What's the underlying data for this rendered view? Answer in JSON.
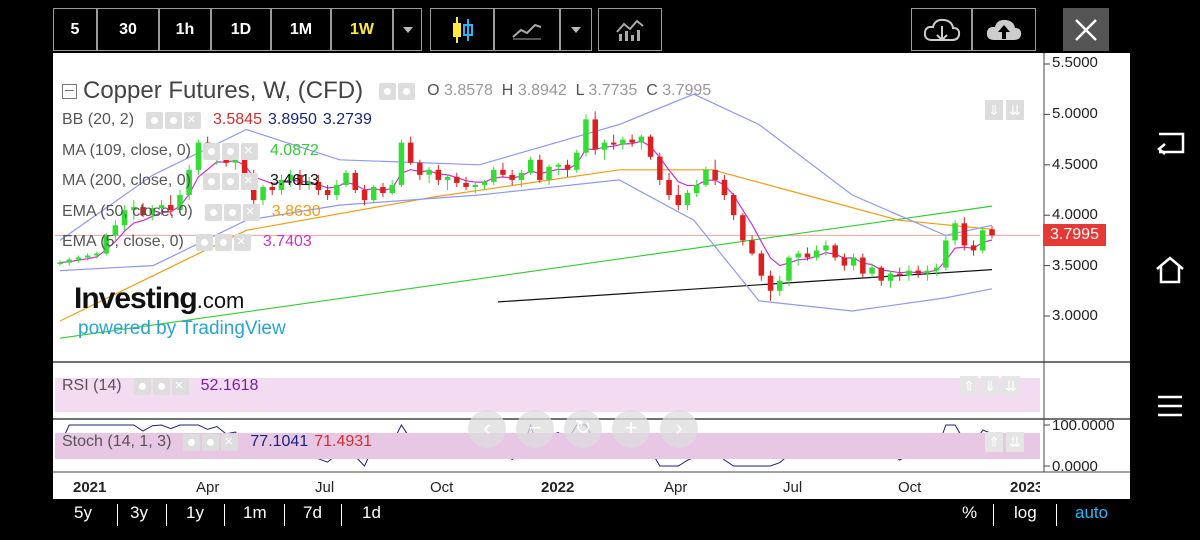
{
  "toolbar": {
    "intervals": [
      "5",
      "30",
      "1h",
      "1D",
      "1M",
      "1W"
    ],
    "active_interval": "1W",
    "colors": {
      "active": "#ffeb3b",
      "text": "#ffffff",
      "border": "#9a9a9a"
    },
    "icons": [
      "chevron-down-icon",
      "candlestick-icon",
      "line-chart-icon",
      "chevron-down-icon",
      "indicators-icon",
      "cloud-download-icon",
      "cloud-upload-icon",
      "close-icon"
    ]
  },
  "header": {
    "title": "Copper Futures, W, (CFD)",
    "ohlc": {
      "o_label": "O",
      "o": "3.8578",
      "h_label": "H",
      "h": "3.8942",
      "l_label": "L",
      "l": "3.7735",
      "c_label": "C",
      "c": "3.7995"
    }
  },
  "indicators": [
    {
      "name": "BB (20, 2)",
      "values": [
        "3.5845",
        "3.8950",
        "3.2739"
      ],
      "colors": [
        "#d32f2f",
        "#1a237e",
        "#1a237e"
      ]
    },
    {
      "name": "MA (109, close, 0)",
      "values": [
        "4.0872"
      ],
      "colors": [
        "#33cc33"
      ]
    },
    {
      "name": "MA (200, close, 0)",
      "values": [
        "3.4613"
      ],
      "colors": [
        "#111111"
      ]
    },
    {
      "name": "EMA (50, close, 0)",
      "values": [
        "3.8630"
      ],
      "colors": [
        "#f39c12"
      ]
    },
    {
      "name": "EMA (5, close, 0)",
      "values": [
        "3.7403"
      ],
      "colors": [
        "#cc33cc"
      ]
    }
  ],
  "watermark": {
    "brand": "Investing",
    "brand_suffix": ".com",
    "powered": "powered by TradingView"
  },
  "price_axis": {
    "labels": [
      "5.5000",
      "5.0000",
      "4.5000",
      "4.0000",
      "3.5000",
      "3.0000"
    ],
    "current_price": "3.7995",
    "current_color": "#e53935"
  },
  "rsi": {
    "name": "RSI (14)",
    "value": "52.1618"
  },
  "stoch": {
    "name": "Stoch (14, 1, 3)",
    "k": "77.1041",
    "d": "71.4931",
    "axis": [
      "100.0000",
      "0.0000"
    ]
  },
  "time_axis": {
    "labels": [
      "2021",
      "Apr",
      "Jul",
      "Oct",
      "2022",
      "Apr",
      "Jul",
      "Oct",
      "2023"
    ]
  },
  "bottom_bar": {
    "ranges": [
      "5y",
      "3y",
      "1y",
      "1m",
      "7d",
      "1d"
    ],
    "options": [
      "%",
      "log",
      "auto"
    ],
    "auto_color": "#29b6f6"
  },
  "nav_icons": [
    "back-icon",
    "home-icon",
    "menu-icon"
  ],
  "chart_data": {
    "type": "candlestick",
    "title": "Copper Futures, W, (CFD)",
    "ylim": [
      2.5,
      5.5
    ],
    "x_ticks": [
      "2021",
      "Apr",
      "Jul",
      "Oct",
      "2022",
      "Apr",
      "Jul",
      "Oct",
      "2023"
    ],
    "candles": [
      [
        3.52,
        3.55,
        3.5,
        3.53
      ],
      [
        3.53,
        3.58,
        3.5,
        3.56
      ],
      [
        3.56,
        3.6,
        3.53,
        3.58
      ],
      [
        3.58,
        3.62,
        3.55,
        3.6
      ],
      [
        3.6,
        3.64,
        3.57,
        3.62
      ],
      [
        3.62,
        3.82,
        3.6,
        3.8
      ],
      [
        3.8,
        3.95,
        3.75,
        3.9
      ],
      [
        3.9,
        4.1,
        3.85,
        4.05
      ],
      [
        4.05,
        4.15,
        3.95,
        4.08
      ],
      [
        4.08,
        4.12,
        3.98,
        4.0
      ],
      [
        4.0,
        4.1,
        3.95,
        4.07
      ],
      [
        4.07,
        4.15,
        4.0,
        4.1
      ],
      [
        4.1,
        4.2,
        4.0,
        4.05
      ],
      [
        4.05,
        4.25,
        4.02,
        4.2
      ],
      [
        4.2,
        4.5,
        4.15,
        4.45
      ],
      [
        4.45,
        4.75,
        4.4,
        4.72
      ],
      [
        4.72,
        4.78,
        4.55,
        4.6
      ],
      [
        4.6,
        4.72,
        4.5,
        4.68
      ],
      [
        4.68,
        4.7,
        4.48,
        4.52
      ],
      [
        4.52,
        4.62,
        4.45,
        4.58
      ],
      [
        4.58,
        4.62,
        4.35,
        4.4
      ],
      [
        4.4,
        4.45,
        4.1,
        4.15
      ],
      [
        4.15,
        4.3,
        4.1,
        4.28
      ],
      [
        4.28,
        4.32,
        4.2,
        4.25
      ],
      [
        4.25,
        4.4,
        4.2,
        4.35
      ],
      [
        4.35,
        4.45,
        4.28,
        4.4
      ],
      [
        4.4,
        4.45,
        4.25,
        4.3
      ],
      [
        4.3,
        4.38,
        4.25,
        4.33
      ],
      [
        4.33,
        4.4,
        4.2,
        4.25
      ],
      [
        4.25,
        4.3,
        4.15,
        4.2
      ],
      [
        4.2,
        4.35,
        4.15,
        4.3
      ],
      [
        4.3,
        4.45,
        4.28,
        4.42
      ],
      [
        4.42,
        4.45,
        4.22,
        4.25
      ],
      [
        4.25,
        4.3,
        4.1,
        4.15
      ],
      [
        4.15,
        4.3,
        4.12,
        4.28
      ],
      [
        4.28,
        4.32,
        4.18,
        4.22
      ],
      [
        4.22,
        4.35,
        4.2,
        4.3
      ],
      [
        4.3,
        4.75,
        4.28,
        4.72
      ],
      [
        4.72,
        4.78,
        4.5,
        4.52
      ],
      [
        4.52,
        4.55,
        4.35,
        4.4
      ],
      [
        4.4,
        4.48,
        4.32,
        4.45
      ],
      [
        4.45,
        4.5,
        4.3,
        4.35
      ],
      [
        4.35,
        4.4,
        4.25,
        4.38
      ],
      [
        4.38,
        4.42,
        4.28,
        4.32
      ],
      [
        4.32,
        4.38,
        4.25,
        4.28
      ],
      [
        4.28,
        4.33,
        4.22,
        4.3
      ],
      [
        4.3,
        4.35,
        4.25,
        4.33
      ],
      [
        4.33,
        4.48,
        4.3,
        4.45
      ],
      [
        4.45,
        4.52,
        4.38,
        4.4
      ],
      [
        4.4,
        4.45,
        4.3,
        4.35
      ],
      [
        4.35,
        4.45,
        4.28,
        4.42
      ],
      [
        4.42,
        4.58,
        4.4,
        4.55
      ],
      [
        4.55,
        4.6,
        4.32,
        4.35
      ],
      [
        4.35,
        4.5,
        4.3,
        4.48
      ],
      [
        4.48,
        4.52,
        4.4,
        4.5
      ],
      [
        4.5,
        4.55,
        4.38,
        4.45
      ],
      [
        4.45,
        4.65,
        4.42,
        4.62
      ],
      [
        4.62,
        5.0,
        4.58,
        4.95
      ],
      [
        4.95,
        5.03,
        4.6,
        4.65
      ],
      [
        4.65,
        4.75,
        4.55,
        4.72
      ],
      [
        4.72,
        4.8,
        4.65,
        4.7
      ],
      [
        4.7,
        4.78,
        4.65,
        4.75
      ],
      [
        4.75,
        4.8,
        4.68,
        4.72
      ],
      [
        4.72,
        4.8,
        4.65,
        4.78
      ],
      [
        4.78,
        4.8,
        4.55,
        4.58
      ],
      [
        4.58,
        4.62,
        4.3,
        4.35
      ],
      [
        4.35,
        4.42,
        4.15,
        4.2
      ],
      [
        4.2,
        4.3,
        4.05,
        4.1
      ],
      [
        4.1,
        4.25,
        4.05,
        4.22
      ],
      [
        4.22,
        4.35,
        4.18,
        4.3
      ],
      [
        4.3,
        4.48,
        4.28,
        4.45
      ],
      [
        4.45,
        4.55,
        4.3,
        4.35
      ],
      [
        4.35,
        4.4,
        4.15,
        4.2
      ],
      [
        4.2,
        4.22,
        3.95,
        4.0
      ],
      [
        4.0,
        4.02,
        3.7,
        3.75
      ],
      [
        3.75,
        3.8,
        3.6,
        3.62
      ],
      [
        3.62,
        3.65,
        3.35,
        3.4
      ],
      [
        3.4,
        3.45,
        3.15,
        3.25
      ],
      [
        3.25,
        3.4,
        3.2,
        3.35
      ],
      [
        3.35,
        3.6,
        3.3,
        3.58
      ],
      [
        3.58,
        3.65,
        3.5,
        3.62
      ],
      [
        3.62,
        3.68,
        3.55,
        3.58
      ],
      [
        3.58,
        3.7,
        3.55,
        3.65
      ],
      [
        3.65,
        3.75,
        3.6,
        3.7
      ],
      [
        3.7,
        3.72,
        3.55,
        3.58
      ],
      [
        3.58,
        3.62,
        3.45,
        3.5
      ],
      [
        3.5,
        3.62,
        3.45,
        3.58
      ],
      [
        3.58,
        3.62,
        3.38,
        3.42
      ],
      [
        3.42,
        3.52,
        3.38,
        3.48
      ],
      [
        3.48,
        3.5,
        3.3,
        3.35
      ],
      [
        3.35,
        3.45,
        3.28,
        3.42
      ],
      [
        3.42,
        3.48,
        3.35,
        3.4
      ],
      [
        3.4,
        3.5,
        3.35,
        3.45
      ],
      [
        3.45,
        3.5,
        3.38,
        3.42
      ],
      [
        3.42,
        3.5,
        3.35,
        3.45
      ],
      [
        3.45,
        3.52,
        3.4,
        3.48
      ],
      [
        3.48,
        3.8,
        3.45,
        3.75
      ],
      [
        3.75,
        3.95,
        3.7,
        3.92
      ],
      [
        3.92,
        3.98,
        3.65,
        3.7
      ],
      [
        3.7,
        3.75,
        3.6,
        3.65
      ],
      [
        3.65,
        3.88,
        3.62,
        3.85
      ],
      [
        3.86,
        3.89,
        3.77,
        3.8
      ]
    ],
    "series": [
      {
        "name": "MA (109, close, 0)",
        "color": "#33cc33",
        "x": [
          0,
          100
        ],
        "y": [
          2.78,
          4.09
        ]
      },
      {
        "name": "MA (200, close, 0)",
        "color": "#111111",
        "x": [
          47,
          100
        ],
        "y": [
          3.14,
          3.46
        ]
      },
      {
        "name": "EMA (50, close, 0)",
        "color": "#f39c12",
        "x": [
          0,
          20,
          40,
          60,
          70,
          80,
          90,
          100
        ],
        "y": [
          2.95,
          3.85,
          4.18,
          4.45,
          4.45,
          4.2,
          3.95,
          3.86
        ]
      },
      {
        "name": "BB (20, 2) upper",
        "color": "#8e99f3",
        "x": [
          0,
          10,
          20,
          30,
          45,
          60,
          68,
          75,
          85,
          95,
          100
        ],
        "y": [
          3.75,
          4.4,
          4.85,
          4.55,
          4.5,
          4.9,
          5.2,
          4.9,
          4.2,
          3.8,
          3.9
        ]
      },
      {
        "name": "BB (20, 2) lower",
        "color": "#8e99f3",
        "x": [
          0,
          10,
          20,
          30,
          45,
          60,
          68,
          75,
          85,
          95,
          100
        ],
        "y": [
          3.45,
          3.5,
          3.95,
          4.1,
          4.2,
          4.35,
          3.95,
          3.15,
          3.05,
          3.18,
          3.27
        ]
      }
    ]
  }
}
